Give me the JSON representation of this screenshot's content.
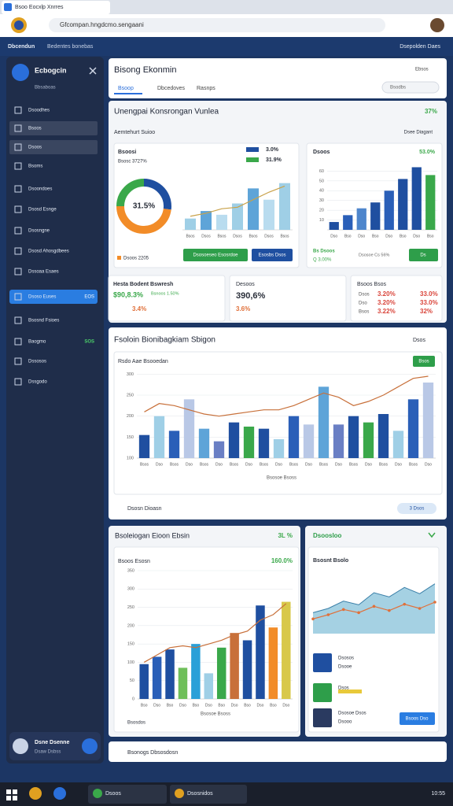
{
  "browser": {
    "tab": "Bsoo Eocxlp Xnrres",
    "url": "Gfcompan.hngdcmo.sengaani"
  },
  "appbar": {
    "title": "Dbcendun",
    "crumb": "Bedentes bonebas",
    "account": "Dsepolden Daes"
  },
  "sidebar": {
    "title": "Ecbogcin",
    "subtitle": "Bbsaboas",
    "items": [
      "Dsoodhes",
      "Bsoos",
      "Dsoos",
      "Bsoms",
      "Dsoondoes",
      "Dsosd Esnge",
      "Dsosngne",
      "Dsosd Ahosgdbees",
      "Dssoaa Esaes",
      "Dsoso Euses",
      "Bsosnd Fsioes",
      "Baogmo",
      "Dssosos",
      "Dssgodo"
    ],
    "active_badge": "EOS",
    "green_badge": "SOS",
    "user_name": "Dsne Dsenne",
    "user_role": "Dsaw Dsbss"
  },
  "header": {
    "title": "Bisong Ekonmin",
    "tabs": [
      "Bsoop",
      "Dbcedoves",
      "Rasnps"
    ],
    "right": "Ebsos",
    "search": "Bsodbs"
  },
  "overview": {
    "title": "Unengpai Konsrongan Vunlea",
    "badge": "37%",
    "subtitle": "Aemtehurt Suioo",
    "filter": "Dsee Diagant",
    "card1": {
      "title": "Bsoosi",
      "subtitle": "Bsosc 3727%",
      "legend": [
        {
          "label": "3.0%",
          "color": "#1f4fa0"
        },
        {
          "label": "31.9%",
          "color": "#3aa84a"
        }
      ],
      "donut": {
        "label": "31.5%",
        "values": [
          27,
          48,
          25
        ],
        "colors": [
          "#1f4fa0",
          "#f28c28",
          "#3aa84a"
        ]
      },
      "bars": {
        "values": [
          15,
          25,
          20,
          35,
          55,
          40,
          62
        ],
        "line": [
          18,
          22,
          28,
          30,
          40,
          50,
          58
        ],
        "ylim": [
          0,
          70
        ],
        "colors": [
          "#9fcfe6",
          "#5ea4d8",
          "#b9dcef"
        ],
        "line_color": "#c9a24a",
        "categories": [
          "Bsos",
          "Dsos",
          "Bsos",
          "Dsos",
          "Bsos",
          "Dsos",
          "Bsos"
        ]
      },
      "footer": "Dsoos 2205",
      "buttons": [
        "Dsosoeseo Esosrdoe",
        "Esosbs Dsos"
      ]
    },
    "card2": {
      "title": "Dsoos",
      "badge": "53.0%",
      "bars": {
        "values": [
          8,
          15,
          22,
          28,
          40,
          52,
          64,
          56
        ],
        "ylim": [
          0,
          70
        ],
        "yticks": [
          10,
          20,
          30,
          40,
          50,
          60
        ],
        "colors": [
          "#1f4fa0",
          "#2a5fb8",
          "#4e86cc",
          "#1f4fa0",
          "#2a5fb8",
          "#1f4fa0",
          "#1f4fa0",
          "#3aa84a"
        ],
        "categories": [
          "Dso",
          "Bso",
          "Dso",
          "Bso",
          "Dso",
          "Bso",
          "Dso",
          "Bso"
        ]
      },
      "footer": [
        "Bs Dsoos",
        "Q 3.00%"
      ],
      "note": "Dsosoe Cs 56%",
      "button": "Ds"
    },
    "stats": [
      {
        "title": "Hesta Bodent Bswresh",
        "value": "$90,8.3%",
        "note": "Bsnoos 1.50%",
        "sub": "3.4%"
      },
      {
        "title": "Desoos",
        "value": "390,6%",
        "sub": "3.6%"
      },
      {
        "title": "Bsoos Bsos",
        "rows": [
          [
            "Dsos",
            "3.20%",
            "33.0%"
          ],
          [
            "Dso",
            "3.20%",
            "33.0%"
          ],
          [
            "Bsos",
            "3.22%",
            "32%"
          ]
        ]
      }
    ]
  },
  "trend": {
    "title": "Fsoloin Bionibagkiam Sbigon",
    "dropdown": "Dsos",
    "subtitle": "Rsdo Aae Bsooedan",
    "button": "Bsos",
    "xlabel": "Bsosoe Bsoss",
    "footer": "Dsosn Dioasn",
    "pill": "3 Dsos",
    "bars": {
      "values": [
        155,
        200,
        165,
        240,
        170,
        140,
        185,
        175,
        170,
        145,
        200,
        180,
        270,
        180,
        200,
        185,
        205,
        165,
        240,
        280
      ],
      "line": [
        210,
        230,
        225,
        215,
        205,
        200,
        205,
        210,
        215,
        215,
        225,
        240,
        255,
        245,
        225,
        235,
        250,
        270,
        290,
        295
      ],
      "ylim": [
        100,
        310
      ],
      "yticks": [
        100,
        150,
        200,
        250,
        300
      ],
      "colors": [
        "#1f4fa0",
        "#9fcfe6",
        "#2a5fb8",
        "#b9c8e6",
        "#5ea4d8",
        "#6a7fc4",
        "#1f4fa0",
        "#3aa84a"
      ],
      "line_color": "#c8703a",
      "categories": [
        "Bsos",
        "Dso",
        "Bsos",
        "Dso",
        "Bsos",
        "Dso",
        "Bsos",
        "Dso",
        "Bsos",
        "Dso",
        "Bsos",
        "Dso",
        "Bsos",
        "Dso",
        "Bsos",
        "Dso",
        "Bsos",
        "Dso",
        "Bsos",
        "Dso"
      ]
    }
  },
  "breakdown": {
    "title": "Bsoleiogan Eioon Ebsin",
    "badge": "3L %",
    "subtitle": "Bsoos Esosn",
    "badge2": "160.0%",
    "xlabel": "Bsosoe Bsoss",
    "footer": "Bsosdos",
    "bars": {
      "values": [
        95,
        115,
        135,
        85,
        150,
        70,
        140,
        180,
        160,
        255,
        195,
        265
      ],
      "line": [
        100,
        120,
        140,
        145,
        140,
        150,
        160,
        175,
        185,
        215,
        230,
        260
      ],
      "ylim": [
        0,
        350
      ],
      "yticks": [
        0,
        50,
        100,
        150,
        200,
        250,
        300,
        350
      ],
      "colors": [
        "#1f4fa0",
        "#2a5fb8",
        "#1f4fa0",
        "#6fbf5a",
        "#2aa0d8",
        "#9fcfe6",
        "#3aa84a",
        "#c8703a",
        "#1f4fa0",
        "#1f4fa0",
        "#f28c28",
        "#d8c84a"
      ],
      "line_color": "#c8703a",
      "categories": [
        "Bso",
        "Dso",
        "Bso",
        "Dso",
        "Bso",
        "Dso",
        "Bso",
        "Dso",
        "Bso",
        "Dso",
        "Bso",
        "Dso"
      ]
    }
  },
  "activity": {
    "title": "Dsoosloo",
    "subtitle": "Bsosnt Bsolo",
    "area": {
      "values": [
        40,
        48,
        62,
        55,
        78,
        70,
        88,
        76,
        95
      ],
      "line": [
        28,
        36,
        46,
        40,
        52,
        44,
        56,
        48,
        60
      ],
      "ylim": [
        0,
        120
      ],
      "color": "#8fc6dc",
      "line_color": "#e0703a"
    },
    "items": [
      [
        "Dsosos",
        "Dsooe"
      ],
      [
        "Dsos"
      ],
      [
        "Dsosoe Dsos",
        "Dsooo"
      ]
    ],
    "button": "Bsoos Dso"
  },
  "footer": "Bsonogs Dbsosdosn",
  "taskbar": {
    "apps": [
      "Dsoos",
      "Dsosnidos"
    ],
    "clock": "10:55"
  }
}
